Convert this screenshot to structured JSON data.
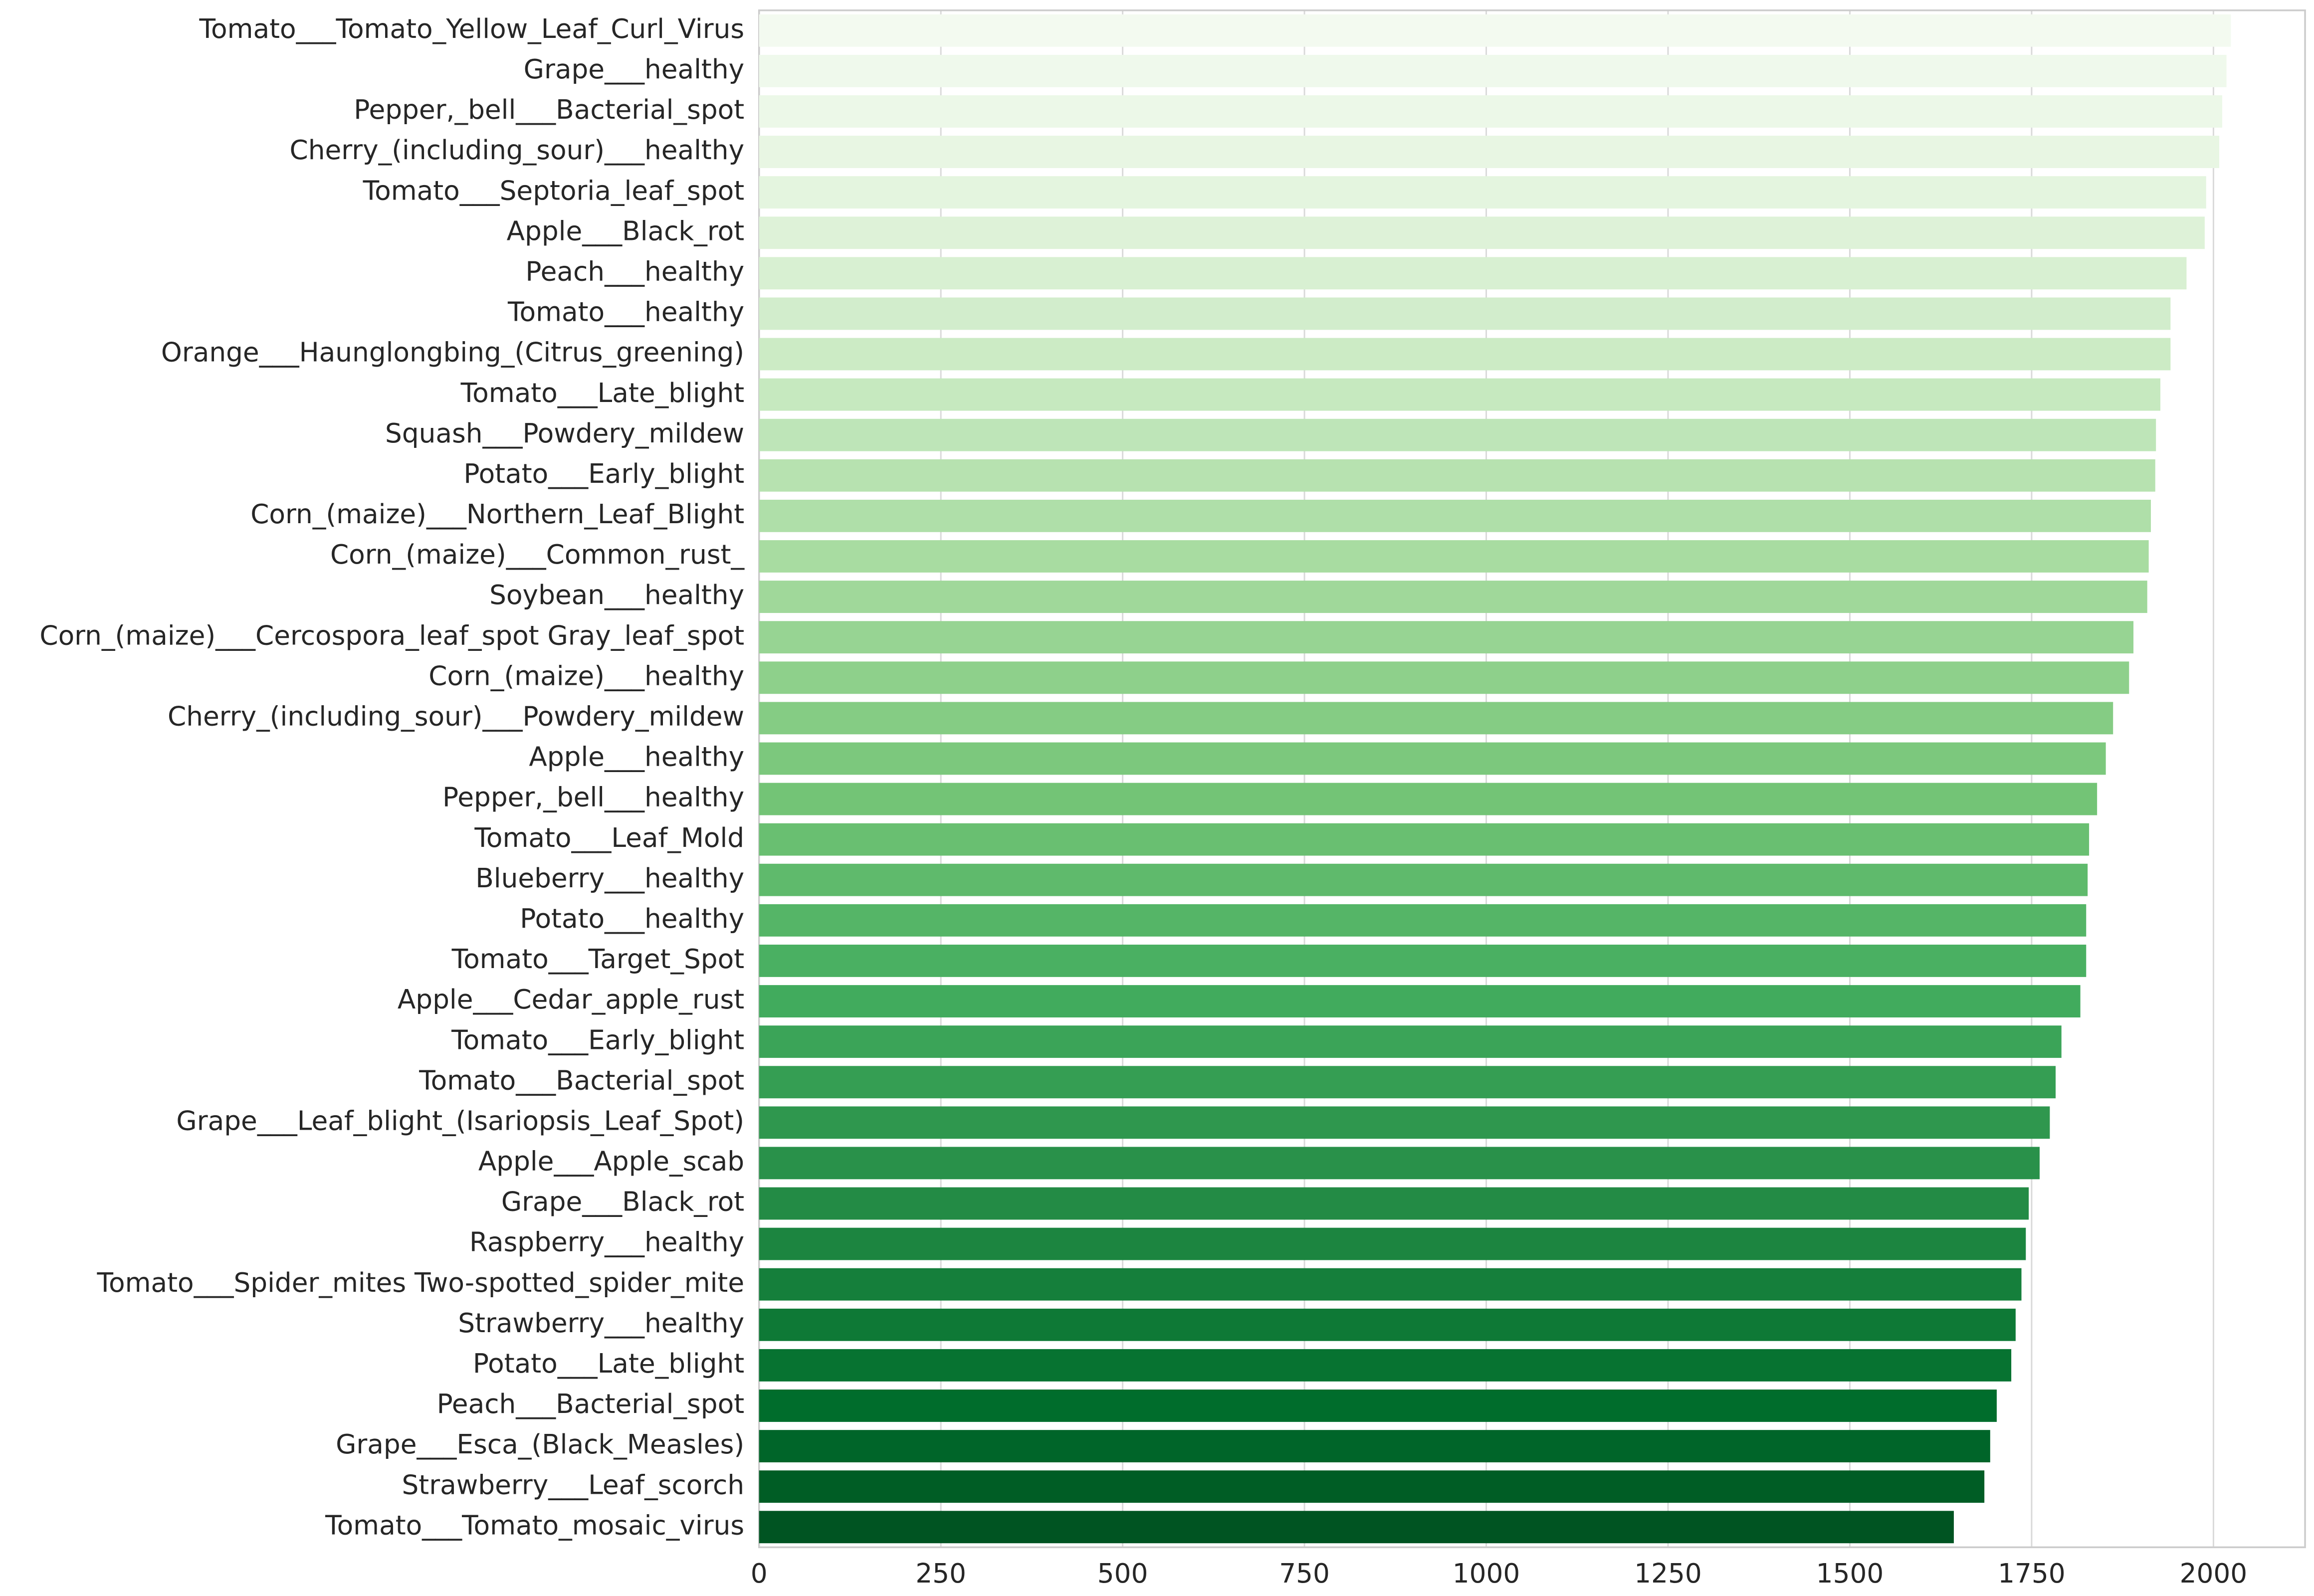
{
  "chart_data": {
    "type": "barh",
    "categories": [
      "Tomato___Tomato_Yellow_Leaf_Curl_Virus",
      "Grape___healthy",
      "Pepper,_bell___Bacterial_spot",
      "Cherry_(including_sour)___healthy",
      "Tomato___Septoria_leaf_spot",
      "Apple___Black_rot",
      "Peach___healthy",
      "Tomato___healthy",
      "Orange___Haunglongbing_(Citrus_greening)",
      "Tomato___Late_blight",
      "Squash___Powdery_mildew",
      "Potato___Early_blight",
      "Corn_(maize)___Northern_Leaf_Blight",
      "Corn_(maize)___Common_rust_",
      "Soybean___healthy",
      "Corn_(maize)___Cercospora_leaf_spot Gray_leaf_spot",
      "Corn_(maize)___healthy",
      "Cherry_(including_sour)___Powdery_mildew",
      "Apple___healthy",
      "Pepper,_bell___healthy",
      "Tomato___Leaf_Mold",
      "Blueberry___healthy",
      "Potato___healthy",
      "Tomato___Target_Spot",
      "Apple___Cedar_apple_rust",
      "Tomato___Early_blight",
      "Tomato___Bacterial_spot",
      "Grape___Leaf_blight_(Isariopsis_Leaf_Spot)",
      "Apple___Apple_scab",
      "Grape___Black_rot",
      "Raspberry___healthy",
      "Tomato___Spider_mites Two-spotted_spider_mite",
      "Strawberry___healthy",
      "Potato___Late_blight",
      "Peach___Bacterial_spot",
      "Grape___Esca_(Black_Measles)",
      "Strawberry___Leaf_scorch",
      "Tomato___Tomato_mosaic_virus"
    ],
    "values": [
      2024,
      2018,
      2012,
      2008,
      1990,
      1988,
      1963,
      1941,
      1941,
      1927,
      1921,
      1920,
      1914,
      1911,
      1909,
      1890,
      1884,
      1862,
      1852,
      1840,
      1829,
      1827,
      1825,
      1825,
      1817,
      1791,
      1783,
      1775,
      1761,
      1746,
      1742,
      1736,
      1728,
      1722,
      1702,
      1693,
      1685,
      1643
    ],
    "colormap": "Greens",
    "xlim": [
      0,
      2126
    ],
    "xticks": [
      0,
      250,
      500,
      750,
      1000,
      1250,
      1500,
      1750,
      2000
    ],
    "grid": true
  }
}
